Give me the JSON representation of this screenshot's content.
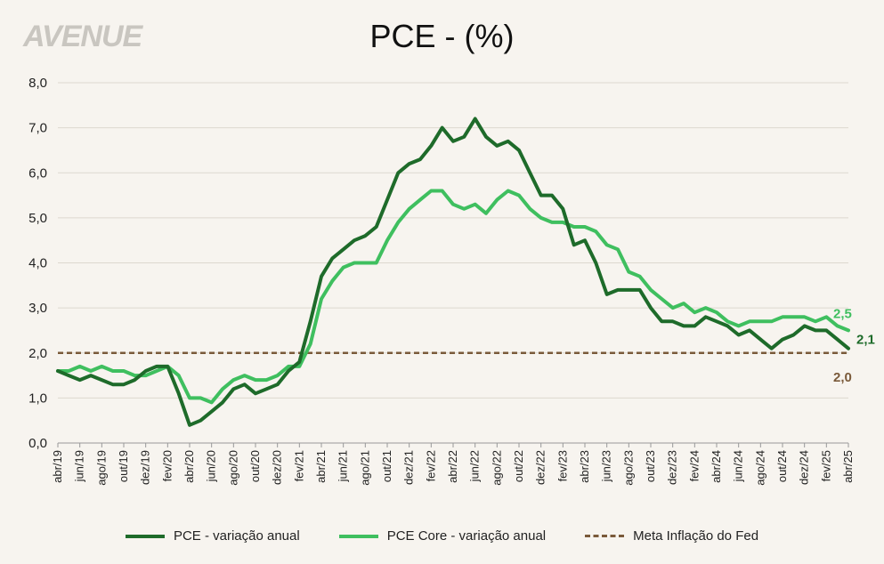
{
  "logo": "AVENUE",
  "chart_data": {
    "type": "line",
    "title": "PCE - (%)",
    "xlabel": "",
    "ylabel": "",
    "ylim": [
      0,
      8
    ],
    "yticks": [
      "0,0",
      "1,0",
      "2,0",
      "3,0",
      "4,0",
      "5,0",
      "6,0",
      "7,0",
      "8,0"
    ],
    "x_tick_labels": [
      "abr/19",
      "jun/19",
      "ago/19",
      "out/19",
      "dez/19",
      "fev/20",
      "abr/20",
      "jun/20",
      "ago/20",
      "out/20",
      "dez/20",
      "fev/21",
      "abr/21",
      "jun/21",
      "ago/21",
      "out/21",
      "dez/21",
      "fev/22",
      "abr/22",
      "jun/22",
      "ago/22",
      "out/22",
      "dez/22",
      "fev/23",
      "abr/23",
      "jun/23",
      "ago/23",
      "out/23",
      "dez/23",
      "fev/24",
      "abr/24",
      "jun/24",
      "ago/24",
      "out/24",
      "dez/24",
      "fev/25",
      "abr/25"
    ],
    "x_start": "abr/19",
    "x_end": "abr/25",
    "grid": "horizontal",
    "legend_position": "bottom",
    "series": [
      {
        "name": "PCE - variação anual",
        "color": "#1e6b2a",
        "values": [
          1.6,
          1.5,
          1.4,
          1.5,
          1.4,
          1.3,
          1.3,
          1.4,
          1.6,
          1.7,
          1.7,
          1.1,
          0.4,
          0.5,
          0.7,
          0.9,
          1.2,
          1.3,
          1.1,
          1.2,
          1.3,
          1.6,
          1.8,
          2.7,
          3.7,
          4.1,
          4.3,
          4.5,
          4.6,
          4.8,
          5.4,
          6.0,
          6.2,
          6.3,
          6.6,
          7.0,
          6.7,
          6.8,
          7.2,
          6.8,
          6.6,
          6.7,
          6.5,
          6.0,
          5.5,
          5.5,
          5.2,
          4.4,
          4.5,
          4.0,
          3.3,
          3.4,
          3.4,
          3.4,
          3.0,
          2.7,
          2.7,
          2.6,
          2.6,
          2.8,
          2.7,
          2.6,
          2.4,
          2.5,
          2.3,
          2.1,
          2.3,
          2.4,
          2.6,
          2.5,
          2.5,
          2.3,
          2.1
        ],
        "end_label": "2,1"
      },
      {
        "name": "PCE Core - variação anual",
        "color": "#3fbf5f",
        "values": [
          1.6,
          1.6,
          1.7,
          1.6,
          1.7,
          1.6,
          1.6,
          1.5,
          1.5,
          1.6,
          1.7,
          1.5,
          1.0,
          1.0,
          0.9,
          1.2,
          1.4,
          1.5,
          1.4,
          1.4,
          1.5,
          1.7,
          1.7,
          2.2,
          3.2,
          3.6,
          3.9,
          4.0,
          4.0,
          4.0,
          4.5,
          4.9,
          5.2,
          5.4,
          5.6,
          5.6,
          5.3,
          5.2,
          5.3,
          5.1,
          5.4,
          5.6,
          5.5,
          5.2,
          5.0,
          4.9,
          4.9,
          4.8,
          4.8,
          4.7,
          4.4,
          4.3,
          3.8,
          3.7,
          3.4,
          3.2,
          3.0,
          3.1,
          2.9,
          3.0,
          2.9,
          2.7,
          2.6,
          2.7,
          2.7,
          2.7,
          2.8,
          2.8,
          2.8,
          2.7,
          2.8,
          2.6,
          2.5
        ],
        "end_label": "2,5"
      },
      {
        "name": "Meta Inflação do Fed",
        "color": "#7a5a3a",
        "style": "dashed",
        "values_constant": 2.0,
        "end_label": "2,0"
      }
    ]
  }
}
